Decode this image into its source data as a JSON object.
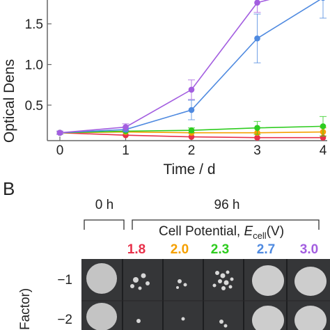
{
  "chart_data": {
    "type": "line",
    "panel_label_a": "",
    "xlabel": "Time / d",
    "ylabel": "Optical Dens",
    "x": [
      0,
      1,
      2,
      3,
      4
    ],
    "xticks": [
      "0",
      "1",
      "2",
      "3",
      "4"
    ],
    "yticks": [
      "0.5",
      "1.0",
      "1.5"
    ],
    "ytick_values": [
      0.5,
      1.0,
      1.5
    ],
    "xlim": [
      -0.1,
      4.05
    ],
    "ylim": [
      0.02,
      1.95
    ],
    "grid": false,
    "series": [
      {
        "color": "#e8304a",
        "values": [
          0.16,
          0.13,
          0.11,
          0.1,
          0.1
        ],
        "errors": [
          0,
          0,
          0,
          0,
          0
        ]
      },
      {
        "color": "#f5a000",
        "values": [
          0.16,
          0.17,
          0.16,
          0.16,
          0.17
        ],
        "errors": [
          0,
          0,
          0,
          0,
          0.05
        ]
      },
      {
        "color": "#2ecc1f",
        "values": [
          0.16,
          0.18,
          0.19,
          0.22,
          0.24
        ],
        "errors": [
          0,
          0,
          0.03,
          0.08,
          0.12
        ]
      },
      {
        "color": "#4f8ae0",
        "values": [
          0.16,
          0.2,
          0.44,
          1.32,
          1.82
        ],
        "errors": [
          0.02,
          0.03,
          0.12,
          0.3,
          0.25
        ]
      },
      {
        "color": "#a35ee0",
        "values": [
          0.16,
          0.23,
          0.69,
          1.76,
          1.97
        ],
        "errors": [
          0.02,
          0.04,
          0.12,
          0.12,
          0
        ]
      }
    ]
  },
  "panel_b": {
    "label": "B",
    "time_0": "0 h",
    "time_96": "96 h",
    "cell_potential_prefix": "Cell Potential, ",
    "e_symbol": "E",
    "e_subscript": "cell",
    "unit": "(V)",
    "potentials": [
      {
        "value": "1.8",
        "color": "#e8304a"
      },
      {
        "value": "2.0",
        "color": "#f5a000"
      },
      {
        "value": "2.3",
        "color": "#2ecc1f"
      },
      {
        "value": "2.7",
        "color": "#4f8ae0"
      },
      {
        "value": "3.0",
        "color": "#a35ee0"
      }
    ],
    "row_labels": [
      "−1",
      "−2"
    ],
    "dilution_axis_fragment": "Factor)"
  }
}
